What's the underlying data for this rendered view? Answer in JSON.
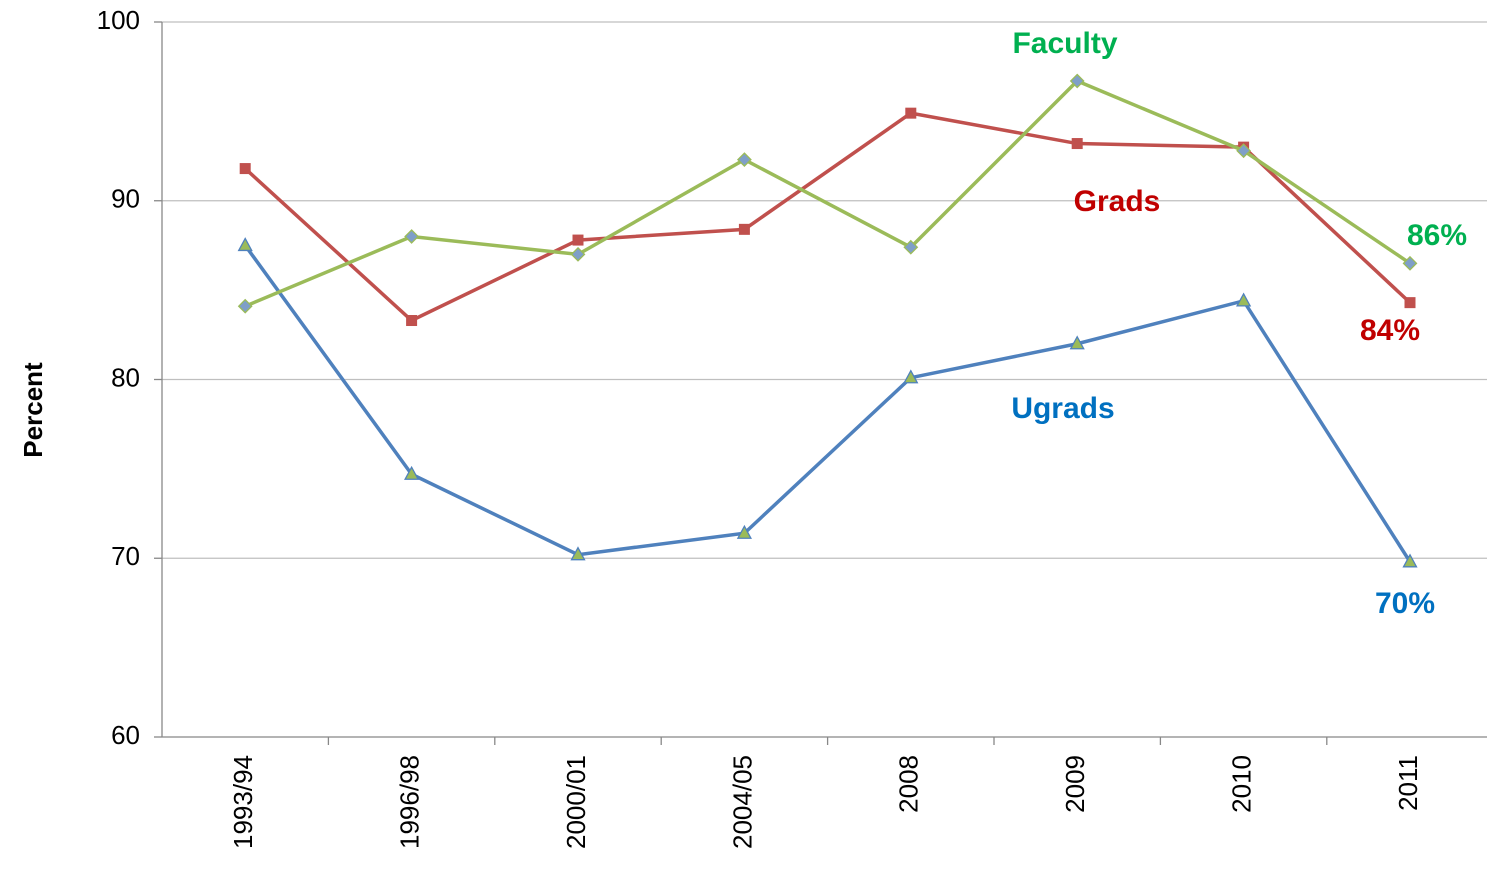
{
  "chart_data": {
    "type": "line",
    "y_label": "Percent",
    "categories": [
      "1993/94",
      "1996/98",
      "2000/01",
      "2004/05",
      "2008",
      "2009",
      "2010",
      "2011"
    ],
    "series": [
      {
        "name": "Ugrads",
        "color": "#4f81bd",
        "label_color": "#0070c0",
        "marker": "triangle",
        "marker_fill": "#9bbb59",
        "values": [
          87.5,
          74.7,
          70.2,
          71.4,
          80.1,
          82.0,
          84.4,
          69.8
        ]
      },
      {
        "name": "Grads",
        "color": "#c0504d",
        "label_color": "#c00000",
        "marker": "square",
        "marker_fill": "#c0504d",
        "values": [
          91.8,
          83.3,
          87.8,
          88.4,
          94.9,
          93.2,
          93.0,
          84.3
        ]
      },
      {
        "name": "Faculty",
        "color": "#9bbb59",
        "label_color": "#00b050",
        "marker": "diamond",
        "marker_fill": "#7f9fc8",
        "values": [
          84.1,
          88.0,
          87.0,
          92.3,
          87.4,
          96.7,
          92.8,
          86.5
        ]
      }
    ],
    "annotations": [
      {
        "text": "70%",
        "series": 0
      },
      {
        "text": "84%",
        "series": 1
      },
      {
        "text": "86%",
        "series": 2
      }
    ],
    "ylim": [
      60,
      100
    ],
    "yticks": [
      60,
      70,
      80,
      90,
      100
    ],
    "grid": true
  }
}
